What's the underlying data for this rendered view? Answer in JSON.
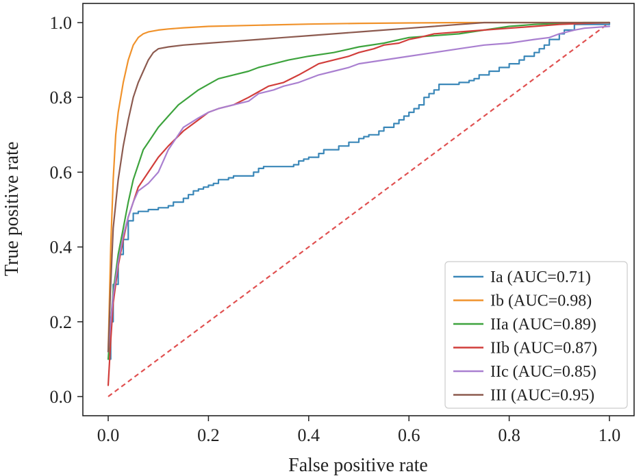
{
  "chart_data": {
    "type": "line",
    "title": "",
    "xlabel": "False positive rate",
    "ylabel": "True positive rate",
    "xlim": [
      -0.05,
      1.05
    ],
    "ylim": [
      -0.05,
      1.05
    ],
    "xticks": [
      "0.0",
      "0.2",
      "0.4",
      "0.6",
      "0.8",
      "1.0"
    ],
    "yticks": [
      "0.0",
      "0.2",
      "0.4",
      "0.6",
      "0.8",
      "1.0"
    ],
    "grid": false,
    "legend_position": "bottom-right",
    "chance_line": {
      "style": "dashed",
      "color": "#e05050",
      "x": [
        0,
        1
      ],
      "y": [
        0,
        1
      ]
    },
    "series": [
      {
        "name": "Ia (AUC=0.71)",
        "color": "#3a87b8",
        "step": true,
        "x": [
          0.0,
          0.005,
          0.01,
          0.02,
          0.03,
          0.04,
          0.05,
          0.06,
          0.08,
          0.1,
          0.12,
          0.13,
          0.15,
          0.16,
          0.17,
          0.18,
          0.19,
          0.2,
          0.21,
          0.22,
          0.24,
          0.25,
          0.27,
          0.29,
          0.3,
          0.31,
          0.34,
          0.37,
          0.38,
          0.39,
          0.4,
          0.42,
          0.43,
          0.44,
          0.46,
          0.48,
          0.5,
          0.51,
          0.52,
          0.54,
          0.55,
          0.57,
          0.58,
          0.59,
          0.6,
          0.61,
          0.62,
          0.63,
          0.64,
          0.65,
          0.66,
          0.67,
          0.7,
          0.72,
          0.73,
          0.74,
          0.76,
          0.78,
          0.8,
          0.82,
          0.83,
          0.85,
          0.86,
          0.87,
          0.88,
          0.9,
          0.91,
          0.93,
          1.0
        ],
        "y": [
          0.1,
          0.2,
          0.3,
          0.38,
          0.42,
          0.47,
          0.49,
          0.495,
          0.5,
          0.505,
          0.51,
          0.52,
          0.53,
          0.54,
          0.55,
          0.555,
          0.56,
          0.565,
          0.57,
          0.58,
          0.585,
          0.59,
          0.59,
          0.6,
          0.61,
          0.615,
          0.615,
          0.62,
          0.63,
          0.635,
          0.64,
          0.65,
          0.66,
          0.66,
          0.67,
          0.68,
          0.69,
          0.695,
          0.7,
          0.71,
          0.72,
          0.73,
          0.74,
          0.75,
          0.76,
          0.77,
          0.78,
          0.8,
          0.81,
          0.82,
          0.835,
          0.835,
          0.84,
          0.845,
          0.85,
          0.86,
          0.87,
          0.88,
          0.89,
          0.9,
          0.91,
          0.92,
          0.93,
          0.94,
          0.955,
          0.97,
          0.98,
          0.995,
          1.0
        ]
      },
      {
        "name": "Ib (AUC=0.98)",
        "color": "#f0922b",
        "x": [
          0.0,
          0.005,
          0.01,
          0.015,
          0.02,
          0.03,
          0.04,
          0.05,
          0.06,
          0.07,
          0.08,
          0.1,
          0.12,
          0.15,
          0.2,
          0.3,
          0.4,
          0.5,
          0.6,
          0.7,
          0.8,
          0.9,
          1.0
        ],
        "y": [
          0.12,
          0.4,
          0.58,
          0.7,
          0.76,
          0.84,
          0.9,
          0.94,
          0.96,
          0.97,
          0.975,
          0.98,
          0.983,
          0.986,
          0.99,
          0.993,
          0.996,
          0.998,
          0.999,
          1.0,
          1.0,
          1.0,
          1.0
        ]
      },
      {
        "name": "IIa (AUC=0.89)",
        "color": "#3da33d",
        "x": [
          0.0,
          0.005,
          0.01,
          0.02,
          0.03,
          0.04,
          0.05,
          0.06,
          0.07,
          0.08,
          0.1,
          0.12,
          0.14,
          0.16,
          0.18,
          0.2,
          0.22,
          0.25,
          0.28,
          0.3,
          0.33,
          0.36,
          0.4,
          0.45,
          0.5,
          0.55,
          0.6,
          0.65,
          0.7,
          0.75,
          0.8,
          0.85,
          0.9,
          0.95,
          1.0
        ],
        "y": [
          0.1,
          0.2,
          0.28,
          0.38,
          0.45,
          0.52,
          0.58,
          0.62,
          0.66,
          0.68,
          0.72,
          0.75,
          0.78,
          0.8,
          0.82,
          0.835,
          0.85,
          0.86,
          0.87,
          0.88,
          0.89,
          0.9,
          0.91,
          0.92,
          0.935,
          0.945,
          0.96,
          0.965,
          0.97,
          0.98,
          0.99,
          0.995,
          0.998,
          1.0,
          1.0
        ]
      },
      {
        "name": "IIb (AUC=0.87)",
        "color": "#d13d3a",
        "x": [
          0.0,
          0.005,
          0.01,
          0.02,
          0.03,
          0.04,
          0.05,
          0.06,
          0.08,
          0.1,
          0.12,
          0.15,
          0.18,
          0.2,
          0.22,
          0.25,
          0.28,
          0.3,
          0.32,
          0.35,
          0.38,
          0.4,
          0.42,
          0.45,
          0.48,
          0.5,
          0.53,
          0.55,
          0.58,
          0.6,
          0.62,
          0.65,
          0.7,
          0.75,
          0.8,
          0.85,
          0.9,
          0.95,
          1.0
        ],
        "y": [
          0.03,
          0.15,
          0.25,
          0.35,
          0.42,
          0.48,
          0.52,
          0.56,
          0.6,
          0.64,
          0.67,
          0.71,
          0.74,
          0.76,
          0.77,
          0.78,
          0.8,
          0.815,
          0.83,
          0.84,
          0.86,
          0.875,
          0.89,
          0.9,
          0.91,
          0.92,
          0.93,
          0.94,
          0.945,
          0.955,
          0.96,
          0.97,
          0.975,
          0.98,
          0.985,
          0.99,
          0.995,
          0.998,
          1.0
        ]
      },
      {
        "name": "IIc (AUC=0.85)",
        "color": "#a97fd0",
        "x": [
          0.0,
          0.005,
          0.01,
          0.02,
          0.03,
          0.04,
          0.05,
          0.06,
          0.08,
          0.1,
          0.12,
          0.15,
          0.18,
          0.2,
          0.22,
          0.25,
          0.28,
          0.3,
          0.33,
          0.35,
          0.38,
          0.4,
          0.42,
          0.45,
          0.48,
          0.5,
          0.55,
          0.6,
          0.65,
          0.7,
          0.75,
          0.8,
          0.85,
          0.88,
          0.9,
          0.93,
          0.95,
          1.0
        ],
        "y": [
          0.12,
          0.2,
          0.27,
          0.36,
          0.43,
          0.48,
          0.52,
          0.55,
          0.57,
          0.6,
          0.66,
          0.72,
          0.745,
          0.76,
          0.77,
          0.78,
          0.79,
          0.81,
          0.82,
          0.83,
          0.84,
          0.85,
          0.86,
          0.87,
          0.88,
          0.89,
          0.9,
          0.91,
          0.92,
          0.93,
          0.94,
          0.945,
          0.955,
          0.96,
          0.97,
          0.98,
          0.985,
          0.99
        ]
      },
      {
        "name": "III (AUC=0.95)",
        "color": "#8c5a4f",
        "x": [
          0.0,
          0.005,
          0.01,
          0.02,
          0.03,
          0.04,
          0.05,
          0.06,
          0.07,
          0.08,
          0.09,
          0.1,
          0.12,
          0.15,
          0.2,
          0.25,
          0.3,
          0.35,
          0.4,
          0.45,
          0.5,
          0.55,
          0.6,
          0.65,
          0.7,
          0.75,
          0.8,
          0.85,
          0.9,
          1.0
        ],
        "y": [
          0.12,
          0.3,
          0.45,
          0.58,
          0.67,
          0.74,
          0.8,
          0.84,
          0.87,
          0.9,
          0.92,
          0.93,
          0.935,
          0.94,
          0.945,
          0.95,
          0.955,
          0.96,
          0.965,
          0.97,
          0.975,
          0.98,
          0.985,
          0.99,
          0.995,
          1.0,
          1.0,
          1.0,
          1.0,
          1.0
        ]
      }
    ]
  }
}
